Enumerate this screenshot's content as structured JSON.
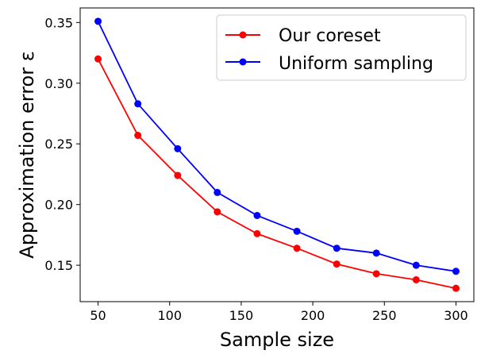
{
  "chart_data": {
    "type": "line",
    "x": [
      50,
      77.8,
      105.6,
      133.3,
      161.1,
      188.9,
      216.7,
      244.4,
      272.2,
      300
    ],
    "series": [
      {
        "name": "Our coreset",
        "color": "#ff0000",
        "values": [
          0.32,
          0.257,
          0.224,
          0.194,
          0.176,
          0.164,
          0.151,
          0.143,
          0.138,
          0.131
        ]
      },
      {
        "name": "Uniform sampling",
        "color": "#0000ff",
        "values": [
          0.351,
          0.283,
          0.246,
          0.21,
          0.191,
          0.178,
          0.164,
          0.16,
          0.15,
          0.145
        ]
      }
    ],
    "xlabel": "Sample size",
    "ylabel": "Approximation error ε",
    "xlim": [
      37.5,
      312.5
    ],
    "ylim": [
      0.12,
      0.362
    ],
    "xticks": [
      50,
      100,
      150,
      200,
      250,
      300
    ],
    "xtick_labels": [
      "50",
      "100",
      "150",
      "200",
      "250",
      "300"
    ],
    "yticks": [
      0.15,
      0.2,
      0.25,
      0.3,
      0.35
    ],
    "ytick_labels": [
      "0.15",
      "0.20",
      "0.25",
      "0.30",
      "0.35"
    ],
    "legend_position": "top-right",
    "grid": false
  }
}
